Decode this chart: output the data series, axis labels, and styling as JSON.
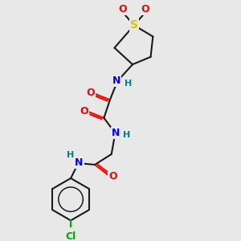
{
  "bg_color": "#e8e8e8",
  "bond_color": "#1a1a1a",
  "atom_colors": {
    "O": "#ff0000",
    "N": "#0000ff",
    "S": "#cccc00",
    "Cl": "#00aa00",
    "C": "#1a1a1a",
    "H": "#008080"
  },
  "font_size_atom": 9,
  "fig_size": [
    3.0,
    3.0
  ],
  "dpi": 100
}
